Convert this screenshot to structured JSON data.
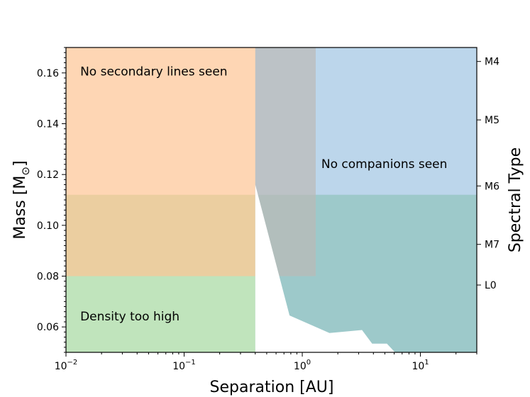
{
  "chart_data": {
    "type": "area",
    "xlabel": "Separation [AU]",
    "ylabel": "Mass [M",
    "ylabel_sub": "⊙",
    "ylabel_close": "]",
    "y2label": "Spectral Type",
    "xscale": "log",
    "xlim": [
      0.01,
      30
    ],
    "ylim": [
      0.05,
      0.17
    ],
    "xticks": [
      {
        "value": 0.01,
        "base": "10",
        "exp": "−2"
      },
      {
        "value": 0.1,
        "base": "10",
        "exp": "−1"
      },
      {
        "value": 1,
        "base": "10",
        "exp": "0"
      },
      {
        "value": 10,
        "base": "10",
        "exp": "1"
      }
    ],
    "yticks": [
      {
        "value": 0.06,
        "label": "0.06"
      },
      {
        "value": 0.08,
        "label": "0.08"
      },
      {
        "value": 0.1,
        "label": "0.10"
      },
      {
        "value": 0.12,
        "label": "0.12"
      },
      {
        "value": 0.14,
        "label": "0.14"
      },
      {
        "value": 0.16,
        "label": "0.16"
      }
    ],
    "y2ticks": [
      {
        "value": 0.1645,
        "label": "M4"
      },
      {
        "value": 0.1415,
        "label": "M5"
      },
      {
        "value": 0.1155,
        "label": "M6"
      },
      {
        "value": 0.0925,
        "label": "M7"
      },
      {
        "value": 0.0765,
        "label": "L0"
      }
    ],
    "regions": [
      {
        "key": "density",
        "color": "#b5dfb0",
        "opacity": 0.85,
        "points": [
          [
            0.01,
            0.05
          ],
          [
            0.01,
            0.112
          ],
          [
            30,
            0.112
          ],
          [
            30,
            0.05
          ]
        ]
      },
      {
        "key": "secondary",
        "color": "#fdc594",
        "opacity": 0.7,
        "points": [
          [
            0.01,
            0.08
          ],
          [
            0.01,
            0.17
          ],
          [
            1.3,
            0.17
          ],
          [
            1.3,
            0.08
          ]
        ]
      },
      {
        "key": "companions",
        "color": "#7aaed8",
        "opacity": 0.5,
        "points": [
          [
            0.4,
            0.05
          ],
          [
            0.4,
            0.17
          ],
          [
            30,
            0.17
          ],
          [
            30,
            0.05
          ]
        ]
      },
      {
        "key": "excluded",
        "color": "#ffffff",
        "opacity": 1,
        "points": [
          [
            0.4,
            0.05
          ],
          [
            0.4,
            0.116
          ],
          [
            0.78,
            0.0645
          ],
          [
            1.7,
            0.0576
          ],
          [
            3.2,
            0.0588
          ],
          [
            3.9,
            0.0534
          ],
          [
            5.2,
            0.0534
          ],
          [
            6.1,
            0.05
          ]
        ]
      }
    ],
    "annotations": [
      {
        "key": "secondary",
        "text": "No secondary lines seen",
        "x": 0.0132,
        "y": 0.159
      },
      {
        "key": "companions",
        "text": "No companions seen",
        "x": 1.45,
        "y": 0.1225
      },
      {
        "key": "density",
        "text": "Density too high",
        "x": 0.0132,
        "y": 0.0625
      }
    ]
  }
}
